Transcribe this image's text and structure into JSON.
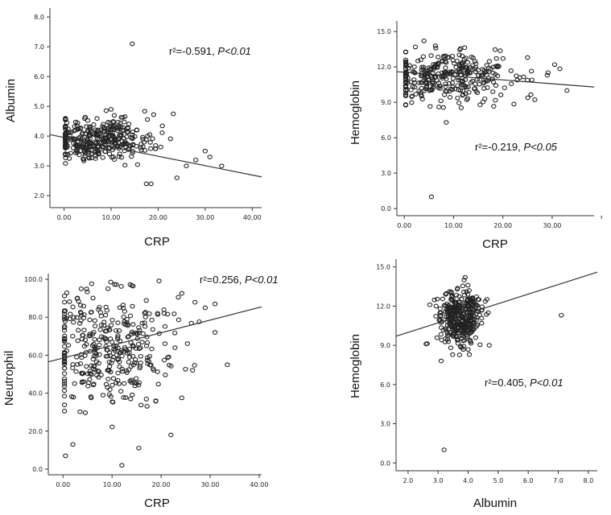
{
  "chart_data": [
    {
      "type": "scatter",
      "xlabel": "CRP",
      "ylabel": "Albumin",
      "xlim": [
        -3,
        42
      ],
      "ylim": [
        1.6,
        8.3
      ],
      "xticks": [
        "0.00",
        "10.00",
        "20.00",
        "30.00",
        "40.00"
      ],
      "yticks": [
        "2.0",
        "3.0",
        "4.0",
        "5.0",
        "6.0",
        "7.0",
        "8.0"
      ],
      "annotation": {
        "r2": "r²=-0.591,",
        "p": "P<0.01"
      },
      "fit_line": {
        "x": [
          -3,
          42
        ],
        "y": [
          4.05,
          2.63
        ]
      },
      "cluster": {
        "x_center": 7,
        "x_spread": 6,
        "y_center": 3.9,
        "y_spread": 0.35,
        "n": 360
      },
      "outliers": [
        {
          "x": 14.5,
          "y": 7.1
        },
        {
          "x": 10,
          "y": 4.9
        },
        {
          "x": 17.5,
          "y": 2.4
        },
        {
          "x": 18.5,
          "y": 2.4
        },
        {
          "x": 30,
          "y": 3.5
        },
        {
          "x": 31,
          "y": 3.3
        },
        {
          "x": 33.5,
          "y": 3.0
        },
        {
          "x": 28,
          "y": 3.2
        },
        {
          "x": 26,
          "y": 3.0
        },
        {
          "x": 24,
          "y": 2.6
        }
      ]
    },
    {
      "type": "scatter",
      "xlabel": "CRP",
      "ylabel": "Hemoglobin",
      "xlim": [
        -1.5,
        38.5
      ],
      "ylim": [
        -0.6,
        15.9
      ],
      "xticks": [
        "0.00",
        "10.00",
        "20.00",
        "30.00",
        ""
      ],
      "yticks": [
        "0.0",
        "3.0",
        "6.0",
        "9.0",
        "12.0",
        "15.0"
      ],
      "annotation": {
        "r2": "r²=-0.219,",
        "p": "P<0.05"
      },
      "fit_line": {
        "x": [
          -1.5,
          38.5
        ],
        "y": [
          11.6,
          10.3
        ]
      },
      "cluster": {
        "x_center": 9,
        "x_spread": 7,
        "y_center": 11.2,
        "y_spread": 1.1,
        "n": 340
      },
      "outliers": [
        {
          "x": 5.5,
          "y": 1.0
        },
        {
          "x": 8.5,
          "y": 7.3
        },
        {
          "x": 4,
          "y": 14.2
        },
        {
          "x": 33,
          "y": 10.0
        },
        {
          "x": 30.5,
          "y": 12.2
        },
        {
          "x": 29,
          "y": 11.3
        },
        {
          "x": 25,
          "y": 12.8
        }
      ]
    },
    {
      "type": "scatter",
      "xlabel": "CRP",
      "ylabel": "Neutrophil",
      "xlim": [
        -3,
        40.5
      ],
      "ylim": [
        -3,
        103
      ],
      "xticks": [
        "0.00",
        "10.00",
        "20.00",
        "30.00",
        "40.00"
      ],
      "yticks": [
        "0.0",
        "20.0",
        "40.0",
        "60.0",
        "80.0",
        "100.0"
      ],
      "annotation": {
        "r2": "r²=0.256,",
        "p": "P<0.01"
      },
      "fit_line": {
        "x": [
          -3,
          40.5
        ],
        "y": [
          56.5,
          85.5
        ]
      },
      "cluster": {
        "x_center": 9,
        "x_spread": 7,
        "y_center": 65,
        "y_spread": 16,
        "n": 380
      },
      "outliers": [
        {
          "x": 12,
          "y": 2
        },
        {
          "x": 0.5,
          "y": 7
        },
        {
          "x": 2,
          "y": 13
        },
        {
          "x": 22,
          "y": 18
        },
        {
          "x": 33.5,
          "y": 55
        },
        {
          "x": 31,
          "y": 72
        },
        {
          "x": 29,
          "y": 85
        },
        {
          "x": 31,
          "y": 87
        }
      ]
    },
    {
      "type": "scatter",
      "xlabel": "Albumin",
      "ylabel": "Hemoglobin",
      "xlim": [
        1.6,
        8.3
      ],
      "ylim": [
        -0.6,
        15.6
      ],
      "xticks": [
        "2.0",
        "3.0",
        "4.0",
        "5.0",
        "6.0",
        "7.0",
        "8.0"
      ],
      "yticks": [
        "0.0",
        "3.0",
        "6.0",
        "9.0",
        "12.0",
        "15.0"
      ],
      "annotation": {
        "r2": "r²=0.405,",
        "p": "P<0.01"
      },
      "fit_line": {
        "x": [
          1.6,
          8.3
        ],
        "y": [
          9.7,
          14.6
        ]
      },
      "cluster": {
        "x_center": 3.75,
        "x_spread": 0.35,
        "y_center": 11.2,
        "y_spread": 1.1,
        "n": 360
      },
      "outliers": [
        {
          "x": 3.2,
          "y": 1.0
        },
        {
          "x": 7.1,
          "y": 11.3
        },
        {
          "x": 4.7,
          "y": 9.0
        },
        {
          "x": 2.6,
          "y": 9.1
        },
        {
          "x": 3.1,
          "y": 7.8
        },
        {
          "x": 3.9,
          "y": 14.2
        }
      ]
    }
  ]
}
